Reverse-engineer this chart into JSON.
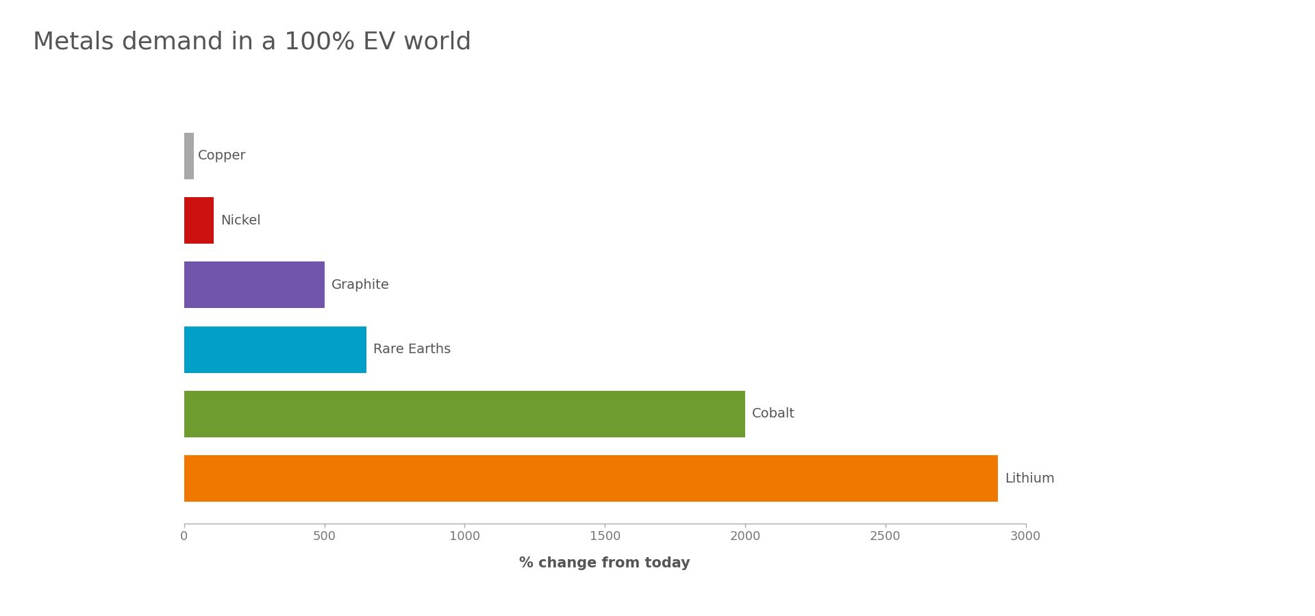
{
  "title": "Metals demand in a 100% EV world",
  "xlabel": "% change from today",
  "categories": [
    "Copper",
    "Nickel",
    "Graphite",
    "Rare Earths",
    "Cobalt",
    "Lithium"
  ],
  "values": [
    35,
    105,
    500,
    650,
    2000,
    2900
  ],
  "colors": [
    "#a8a8a8",
    "#cc1111",
    "#7055aa",
    "#00a0c8",
    "#6e9c2f",
    "#f07800"
  ],
  "xlim": [
    0,
    3000
  ],
  "xticks": [
    0,
    500,
    1000,
    1500,
    2000,
    2500,
    3000
  ],
  "background_color": "#ffffff",
  "title_fontsize": 26,
  "label_fontsize": 14,
  "tick_fontsize": 13,
  "xlabel_fontsize": 15,
  "bar_height": 0.72,
  "label_color": "#555555",
  "title_color": "#555555",
  "axis_color": "#aaaaaa",
  "tick_color": "#777777"
}
